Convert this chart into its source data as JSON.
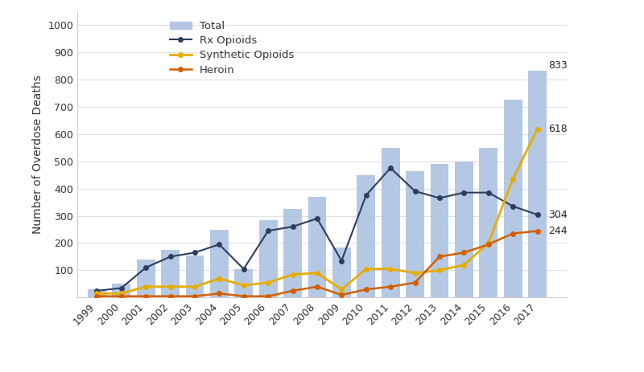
{
  "years": [
    1999,
    2000,
    2001,
    2002,
    2003,
    2004,
    2005,
    2006,
    2007,
    2008,
    2009,
    2010,
    2011,
    2012,
    2013,
    2014,
    2015,
    2016,
    2017
  ],
  "total": [
    30,
    50,
    140,
    175,
    155,
    250,
    105,
    285,
    325,
    370,
    185,
    450,
    550,
    465,
    490,
    500,
    550,
    725,
    833
  ],
  "rx_opioids": [
    25,
    35,
    110,
    150,
    165,
    195,
    105,
    245,
    260,
    290,
    135,
    375,
    475,
    390,
    365,
    385,
    385,
    335,
    304
  ],
  "synthetic_opioids": [
    15,
    15,
    40,
    40,
    40,
    70,
    45,
    55,
    85,
    90,
    30,
    105,
    105,
    90,
    100,
    120,
    200,
    435,
    618
  ],
  "heroin": [
    5,
    5,
    5,
    5,
    5,
    15,
    5,
    5,
    25,
    40,
    10,
    30,
    40,
    55,
    150,
    165,
    195,
    235,
    244
  ],
  "bar_color": "#adc2e0",
  "rx_color": "#2e3d5f",
  "synthetic_color": "#e6ac00",
  "heroin_color": "#d45f00",
  "ylabel": "Number of Overdose Deaths",
  "ylim": [
    0,
    1050
  ],
  "yticks": [
    0,
    100,
    200,
    300,
    400,
    500,
    600,
    700,
    800,
    900,
    1000
  ],
  "figsize": [
    8.0,
    4.63
  ],
  "dpi": 100
}
